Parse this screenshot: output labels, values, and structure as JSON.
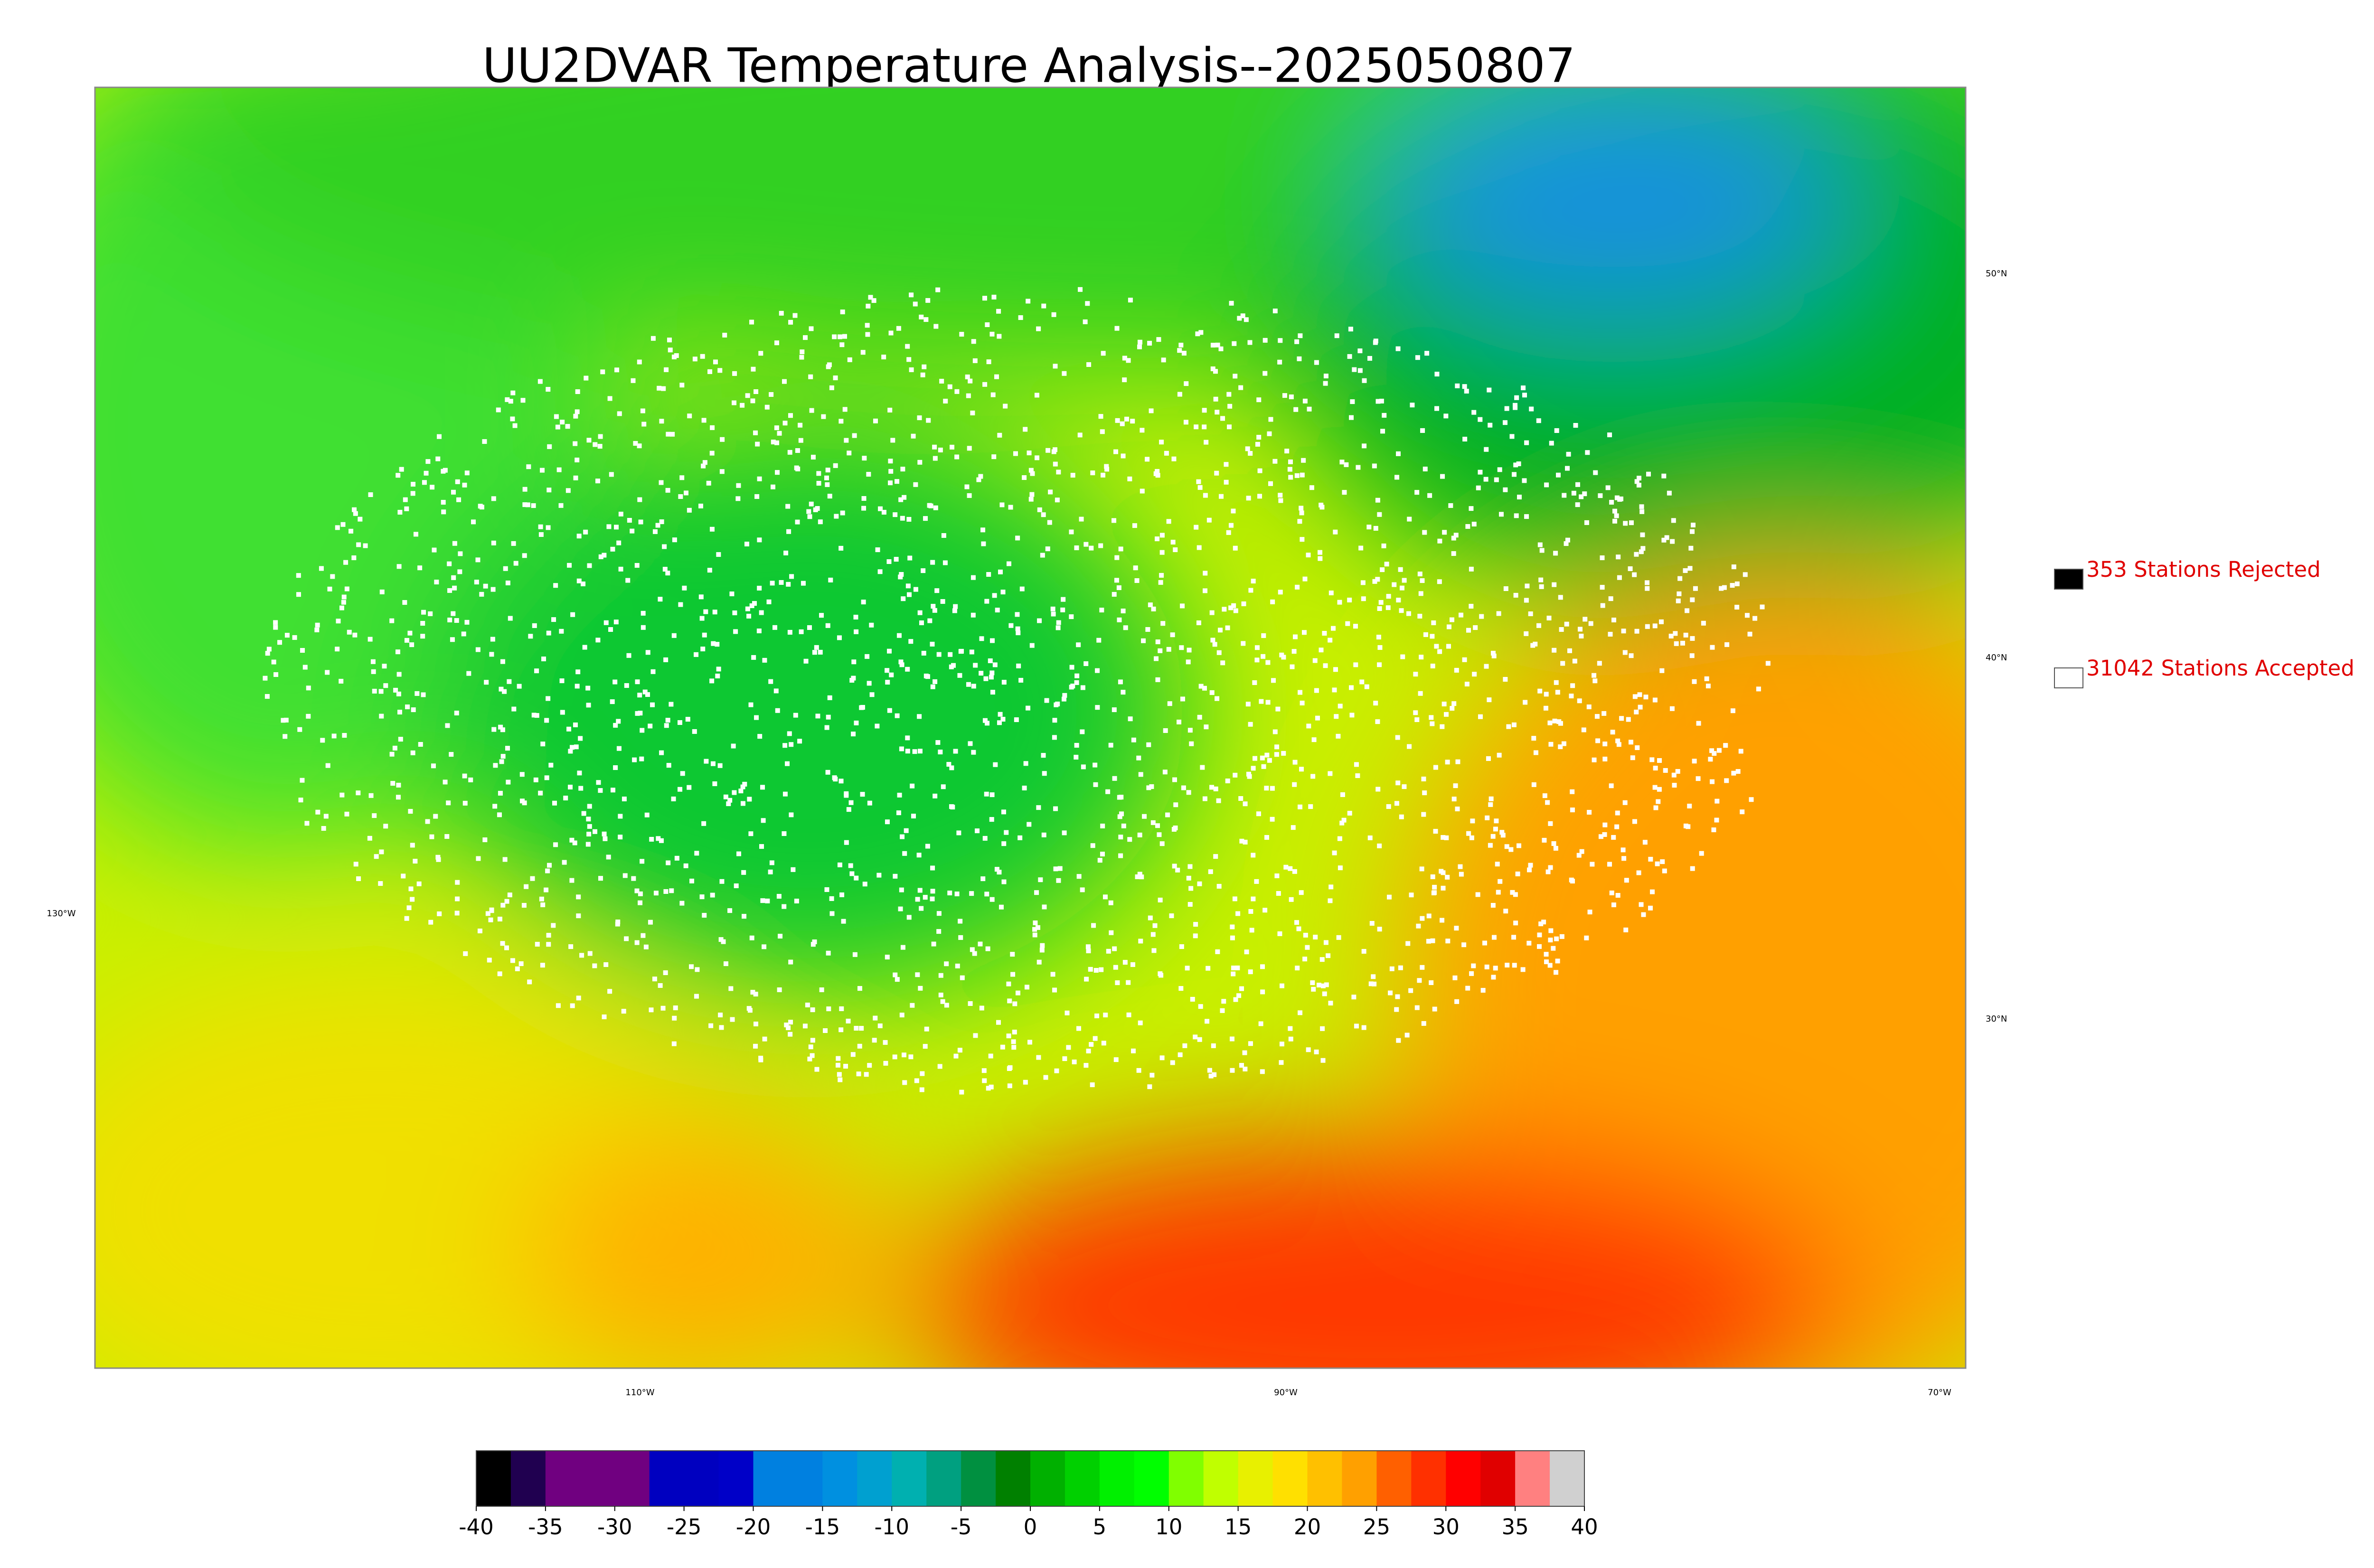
{
  "header": {
    "title": "UU2DVAR Temperature Analysis--2025050807"
  },
  "map": {
    "lat_labels": [
      "50°N",
      "40°N",
      "30°N"
    ],
    "lon_labels": [
      "130°W",
      "110°W",
      "90°W",
      "70°W"
    ]
  },
  "legend": {
    "items": [
      {
        "label": "353 Stations Rejected",
        "color": "#000000"
      },
      {
        "label": "31042 Stations Accepted",
        "color": "#ffffff"
      }
    ]
  },
  "colorbar": {
    "range": [
      -40,
      40
    ],
    "ticks": [
      -40,
      -35,
      -30,
      -25,
      -20,
      -15,
      -10,
      -5,
      0,
      5,
      10,
      15,
      20,
      25,
      30,
      35,
      40
    ],
    "colors": [
      "#000000",
      "#200050",
      "#700080",
      "#700080",
      "#700080",
      "#0000c0",
      "#0000c0",
      "#0000c8",
      "#0080e0",
      "#0080e0",
      "#0090e0",
      "#00a0d0",
      "#00b0b0",
      "#00a080",
      "#009040",
      "#008000",
      "#00b000",
      "#00d000",
      "#00f000",
      "#00ff00",
      "#80ff00",
      "#c0ff00",
      "#e8f000",
      "#ffe000",
      "#ffc000",
      "#ffa000",
      "#ff6000",
      "#ff3000",
      "#ff0000",
      "#e00000",
      "#ff8080",
      "#d0d0d0"
    ]
  }
}
